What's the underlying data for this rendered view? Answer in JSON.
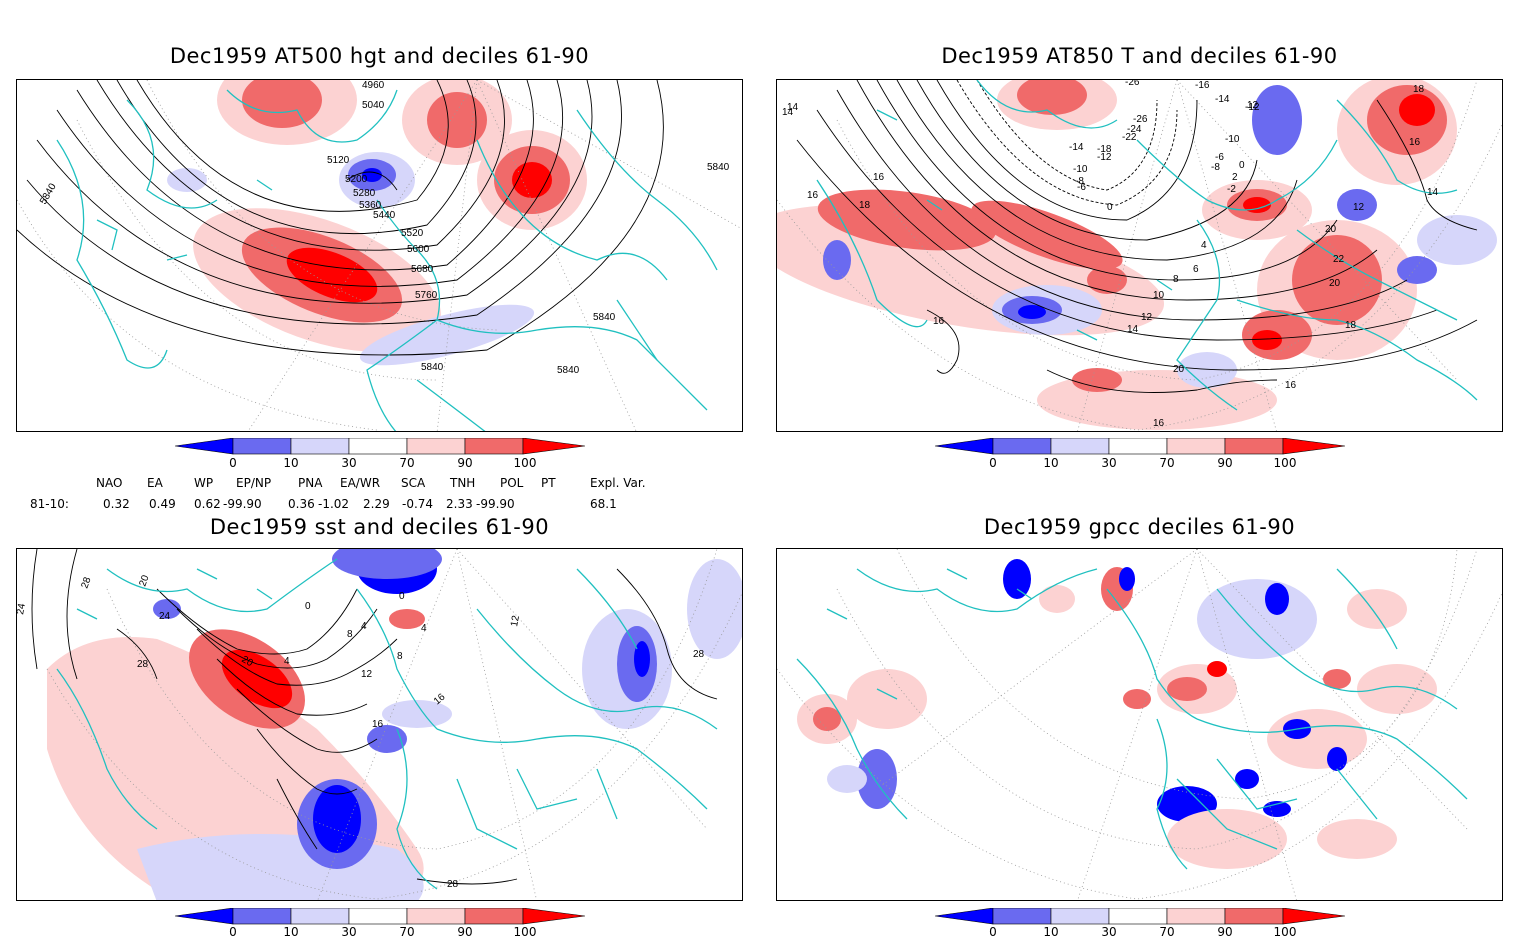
{
  "panels": [
    {
      "title": "Dec1959 AT500 hgt and deciles 61-90",
      "contour_labels": [
        "4960",
        "5040",
        "5120",
        "5200",
        "5280",
        "5360",
        "5440",
        "5520",
        "5600",
        "5680",
        "5760",
        "5840",
        "5840",
        "5840",
        "5840",
        "5840"
      ]
    },
    {
      "title": "Dec1959 AT850 T and deciles 61-90",
      "contour_labels": [
        "-26",
        "-16",
        "-14",
        "-12",
        "-26",
        "-24",
        "-22",
        "-18",
        "-14",
        "-12",
        "-10",
        "-8",
        "-6",
        "-2",
        "0",
        "2",
        "-10",
        "-8",
        "-6",
        "0",
        "4",
        "6",
        "8",
        "10",
        "12",
        "14",
        "12",
        "16",
        "16",
        "14",
        "14",
        "16",
        "18",
        "20",
        "22",
        "20",
        "20",
        "18",
        "16",
        "16",
        "18",
        "16",
        "14",
        "12"
      ]
    },
    {
      "title": "Dec1959 sst and deciles 61-90",
      "contour_labels": [
        "24",
        "28",
        "20",
        "24",
        "28",
        "20",
        "4",
        "0",
        "0",
        "4",
        "4",
        "8",
        "8",
        "12",
        "16",
        "16",
        "12",
        "28",
        "28"
      ]
    },
    {
      "title": "Dec1959 gpcc deciles 61-90",
      "contour_labels": []
    }
  ],
  "colorbar": {
    "labels": [
      "0",
      "10",
      "30",
      "70",
      "90",
      "100"
    ],
    "colors": [
      "#0000ff",
      "#6a6af0",
      "#d6d6fa",
      "#ffffff",
      "#fcd2d2",
      "#f06a6a",
      "#ff0000"
    ]
  },
  "indices": {
    "headers": [
      "NAO",
      "EA",
      "WP",
      "EP/NP",
      "PNA",
      "EA/WR",
      "SCA",
      "TNH",
      "POL",
      "PT",
      "Expl. Var."
    ],
    "row_label": "81-10:",
    "values": [
      "0.32",
      "0.49",
      "0.62",
      "-99.90",
      "0.36",
      "-1.02",
      "2.29",
      "-0.74",
      "2.33",
      "-99.90",
      "68.1"
    ]
  },
  "colors": {
    "coast": "#20c0c0",
    "grid": "#999999",
    "contour": "#000000"
  }
}
